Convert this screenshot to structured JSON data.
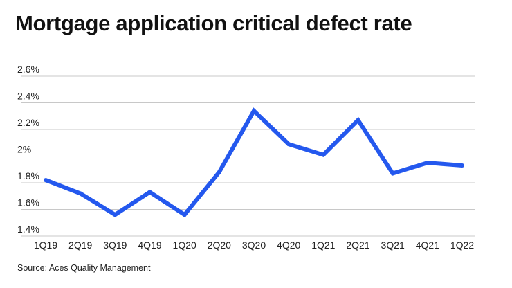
{
  "title": "Mortgage application critical defect rate",
  "source": "Source: Aces Quality Management",
  "colors": {
    "line": "#2458ee",
    "grid": "#c8c8c8",
    "text": "#222222"
  },
  "chart_data": {
    "type": "line",
    "title": "Mortgage application critical defect rate",
    "xlabel": "",
    "ylabel": "",
    "categories": [
      "1Q19",
      "2Q19",
      "3Q19",
      "4Q19",
      "1Q20",
      "2Q20",
      "3Q20",
      "4Q20",
      "1Q21",
      "2Q21",
      "3Q21",
      "4Q21",
      "1Q22"
    ],
    "values": [
      1.82,
      1.72,
      1.56,
      1.73,
      1.56,
      1.88,
      2.34,
      2.09,
      2.01,
      2.27,
      1.87,
      1.95,
      1.93
    ],
    "unit": "%",
    "ylim": [
      1.4,
      2.6
    ],
    "yticks": [
      1.4,
      1.6,
      1.8,
      2.0,
      2.2,
      2.4,
      2.6
    ],
    "ytick_labels": [
      "1.4%",
      "1.6%",
      "1.8%",
      "2%",
      "2.2%",
      "2.4%",
      "2.6%"
    ],
    "grid": true,
    "legend": false
  }
}
